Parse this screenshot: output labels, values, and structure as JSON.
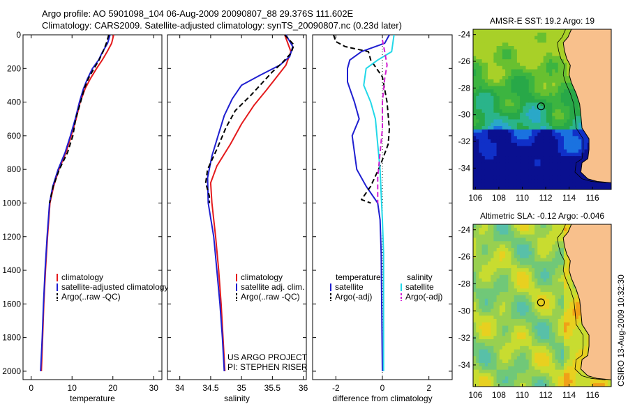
{
  "header": {
    "line1": "Argo profile: AO 5901098_104 06-Aug-2009 20090807_88 29.376S 111.602E",
    "line2": "Climatology: CARS2009. Satellite-adjusted climatology: synTS_20090807.nc (0.23d later)"
  },
  "colors": {
    "climatology": "#e41a1c",
    "satellite": "#1f1fd0",
    "argo": "#000000",
    "satellite_diff": "#22d8e8",
    "argo_diff_sal": "#d21fd2",
    "land": "#f8c08c"
  },
  "chart_data": [
    {
      "type": "line",
      "panel": "temperature",
      "xlabel": "temperature",
      "ylabel": "",
      "xlim": [
        -2,
        32
      ],
      "ylim": [
        2050,
        0
      ],
      "xticks": [
        0,
        10,
        20,
        30
      ],
      "yticks": [
        0,
        200,
        400,
        600,
        800,
        1000,
        1200,
        1400,
        1600,
        1800,
        2000
      ],
      "legend": [
        "climatology",
        "satellite-adjusted climatology",
        "Argo(..raw -QC)"
      ],
      "legend_position": "lower-middle",
      "series": [
        {
          "name": "climatology",
          "color_key": "climatology",
          "dash": "solid",
          "points": [
            [
              20.2,
              0
            ],
            [
              19.7,
              50
            ],
            [
              18.6,
              100
            ],
            [
              17.4,
              150
            ],
            [
              16,
              200
            ],
            [
              14.5,
              260
            ],
            [
              13.2,
              320
            ],
            [
              12,
              400
            ],
            [
              11,
              500
            ],
            [
              9.8,
              600
            ],
            [
              8.5,
              700
            ],
            [
              6.8,
              800
            ],
            [
              5.5,
              900
            ],
            [
              4.6,
              1000
            ],
            [
              4,
              1200
            ],
            [
              3.5,
              1400
            ],
            [
              3.1,
              1600
            ],
            [
              2.8,
              1800
            ],
            [
              2.5,
              2000
            ]
          ]
        },
        {
          "name": "satellite-adjusted climatology",
          "color_key": "satellite",
          "dash": "solid",
          "points": [
            [
              19.3,
              0
            ],
            [
              18.7,
              50
            ],
            [
              17.5,
              100
            ],
            [
              16.5,
              150
            ],
            [
              15,
              200
            ],
            [
              13.8,
              260
            ],
            [
              12.8,
              320
            ],
            [
              11.8,
              400
            ],
            [
              10.8,
              500
            ],
            [
              9.6,
              600
            ],
            [
              8.3,
              700
            ],
            [
              6.6,
              800
            ],
            [
              5.3,
              900
            ],
            [
              4.5,
              1000
            ],
            [
              3.9,
              1200
            ],
            [
              3.4,
              1400
            ],
            [
              3,
              1600
            ],
            [
              2.7,
              1800
            ],
            [
              2.3,
              2000
            ]
          ]
        },
        {
          "name": "Argo(..raw -QC)",
          "color_key": "argo",
          "dash": "dashed",
          "points": [
            [
              19,
              0
            ],
            [
              18.4,
              50
            ],
            [
              17.6,
              100
            ],
            [
              16.6,
              150
            ],
            [
              15.4,
              200
            ],
            [
              14,
              260
            ],
            [
              13,
              320
            ],
            [
              12.1,
              400
            ],
            [
              10.9,
              500
            ],
            [
              10.2,
              600
            ],
            [
              8.9,
              700
            ],
            [
              6.9,
              800
            ],
            [
              5.4,
              900
            ],
            [
              4.5,
              1000
            ]
          ]
        }
      ]
    },
    {
      "type": "line",
      "panel": "salinity",
      "xlabel": "salinity",
      "xlim": [
        33.8,
        36.05
      ],
      "ylim": [
        2050,
        0
      ],
      "xticks": [
        34,
        34.5,
        35,
        35.5,
        36
      ],
      "legend": [
        "climatology",
        "satellite adj. clim.",
        "Argo(..raw -QC)"
      ],
      "legend_position": "lower-right",
      "annotation": [
        "US ARGO PROJECT",
        "PI: STEPHEN RISER"
      ],
      "series": [
        {
          "name": "climatology",
          "color_key": "climatology",
          "dash": "solid",
          "points": [
            [
              35.7,
              0
            ],
            [
              35.8,
              100
            ],
            [
              35.72,
              180
            ],
            [
              35.55,
              260
            ],
            [
              35.4,
              330
            ],
            [
              35.2,
              420
            ],
            [
              35.0,
              530
            ],
            [
              34.82,
              650
            ],
            [
              34.6,
              780
            ],
            [
              34.5,
              880
            ],
            [
              34.52,
              1000
            ],
            [
              34.58,
              1200
            ],
            [
              34.63,
              1400
            ],
            [
              34.67,
              1600
            ],
            [
              34.7,
              1800
            ],
            [
              34.73,
              2000
            ]
          ]
        },
        {
          "name": "satellite adj. clim.",
          "color_key": "satellite",
          "dash": "solid",
          "points": [
            [
              35.72,
              0
            ],
            [
              35.83,
              70
            ],
            [
              35.78,
              130
            ],
            [
              35.62,
              180
            ],
            [
              35.3,
              240
            ],
            [
              35.0,
              300
            ],
            [
              34.85,
              380
            ],
            [
              34.72,
              480
            ],
            [
              34.62,
              600
            ],
            [
              34.52,
              720
            ],
            [
              34.45,
              850
            ],
            [
              34.46,
              1000
            ],
            [
              34.55,
              1200
            ],
            [
              34.6,
              1400
            ],
            [
              34.65,
              1600
            ],
            [
              34.69,
              1800
            ],
            [
              34.72,
              2000
            ]
          ]
        },
        {
          "name": "Argo(..raw -QC)",
          "color_key": "argo",
          "dash": "dashed",
          "points": [
            [
              35.7,
              0
            ],
            [
              35.85,
              60
            ],
            [
              35.8,
              110
            ],
            [
              35.65,
              170
            ],
            [
              35.5,
              220
            ],
            [
              35.35,
              280
            ],
            [
              35.15,
              360
            ],
            [
              34.9,
              450
            ],
            [
              34.75,
              550
            ],
            [
              34.6,
              680
            ],
            [
              34.45,
              800
            ],
            [
              34.42,
              880
            ],
            [
              34.48,
              960
            ],
            [
              34.48,
              1000
            ]
          ]
        }
      ]
    },
    {
      "type": "line",
      "panel": "difference",
      "xlabel": "difference from climatology",
      "xlim": [
        -3,
        3
      ],
      "ylim": [
        2050,
        0
      ],
      "xticks": [
        -2,
        0,
        2
      ],
      "zero_line": "dotted",
      "legend_temperature": [
        "temperature",
        "satellite",
        "Argo(-adj)"
      ],
      "legend_salinity": [
        "salinity",
        "satellite",
        "Argo(-adj)"
      ],
      "series": [
        {
          "name": "temperature satellite",
          "color_key": "satellite",
          "dash": "solid",
          "points": [
            [
              0.3,
              0
            ],
            [
              0.1,
              50
            ],
            [
              -0.9,
              100
            ],
            [
              -1.4,
              150
            ],
            [
              -1.5,
              200
            ],
            [
              -1.5,
              280
            ],
            [
              -1.2,
              400
            ],
            [
              -1.0,
              500
            ],
            [
              -1.3,
              600
            ],
            [
              -1.2,
              700
            ],
            [
              -1.1,
              800
            ],
            [
              -0.7,
              900
            ],
            [
              -0.2,
              1000
            ],
            [
              -0.1,
              1100
            ],
            [
              -0.05,
              1300
            ],
            [
              0,
              2000
            ]
          ]
        },
        {
          "name": "temperature Argo(-adj)",
          "color_key": "argo",
          "dash": "dashed",
          "points": [
            [
              -2.1,
              0
            ],
            [
              -2.0,
              40
            ],
            [
              -1.6,
              70
            ],
            [
              -0.6,
              100
            ],
            [
              -0.5,
              150
            ],
            [
              0,
              250
            ],
            [
              0.2,
              400
            ],
            [
              0.3,
              560
            ],
            [
              0.25,
              650
            ],
            [
              -0.1,
              780
            ],
            [
              -0.5,
              900
            ],
            [
              -0.9,
              980
            ],
            [
              -0.5,
              1000
            ]
          ]
        },
        {
          "name": "salinity satellite",
          "color_key": "satellite_diff",
          "dash": "solid",
          "points": [
            [
              0.5,
              0
            ],
            [
              0.4,
              100
            ],
            [
              -0.2,
              150
            ],
            [
              -0.7,
              200
            ],
            [
              -0.8,
              300
            ],
            [
              -0.5,
              400
            ],
            [
              -0.3,
              500
            ],
            [
              -0.2,
              650
            ],
            [
              -0.1,
              800
            ],
            [
              -0.05,
              950
            ],
            [
              0,
              1100
            ],
            [
              0.05,
              1300
            ],
            [
              0.05,
              2000
            ]
          ]
        },
        {
          "name": "salinity Argo(-adj)",
          "color_key": "argo_diff_sal",
          "dash": "dashed",
          "points": [
            [
              0,
              30
            ],
            [
              0.1,
              100
            ],
            [
              0.2,
              180
            ],
            [
              0.1,
              260
            ],
            [
              0,
              400
            ],
            [
              0,
              560
            ],
            [
              -0.1,
              700
            ],
            [
              -0.2,
              850
            ],
            [
              -0.2,
              1000
            ]
          ]
        }
      ]
    },
    {
      "type": "heatmap",
      "panel": "sst_map",
      "title": "AMSR-E SST: 19.2 Argo: 19",
      "xticks": [
        106,
        108,
        110,
        112,
        114,
        116
      ],
      "yticks": [
        -24,
        -26,
        -28,
        -30,
        -32,
        -34
      ],
      "xlim": [
        105.8,
        117.6
      ],
      "ylim": [
        -35.6,
        -23.6
      ],
      "marker": {
        "lon": 111.602,
        "lat": -29.376
      }
    },
    {
      "type": "heatmap",
      "panel": "sla_map",
      "title": "Altimetric SLA: -0.12 Argo: -0.046",
      "xticks": [
        106,
        108,
        110,
        112,
        114,
        116
      ],
      "yticks": [
        -24,
        -26,
        -28,
        -30,
        -32,
        -34
      ],
      "xlim": [
        105.8,
        117.6
      ],
      "ylim": [
        -35.6,
        -23.6
      ],
      "marker": {
        "lon": 111.602,
        "lat": -29.376
      }
    }
  ],
  "credit": "CSIRO 13-Aug-2009 10:32:30"
}
